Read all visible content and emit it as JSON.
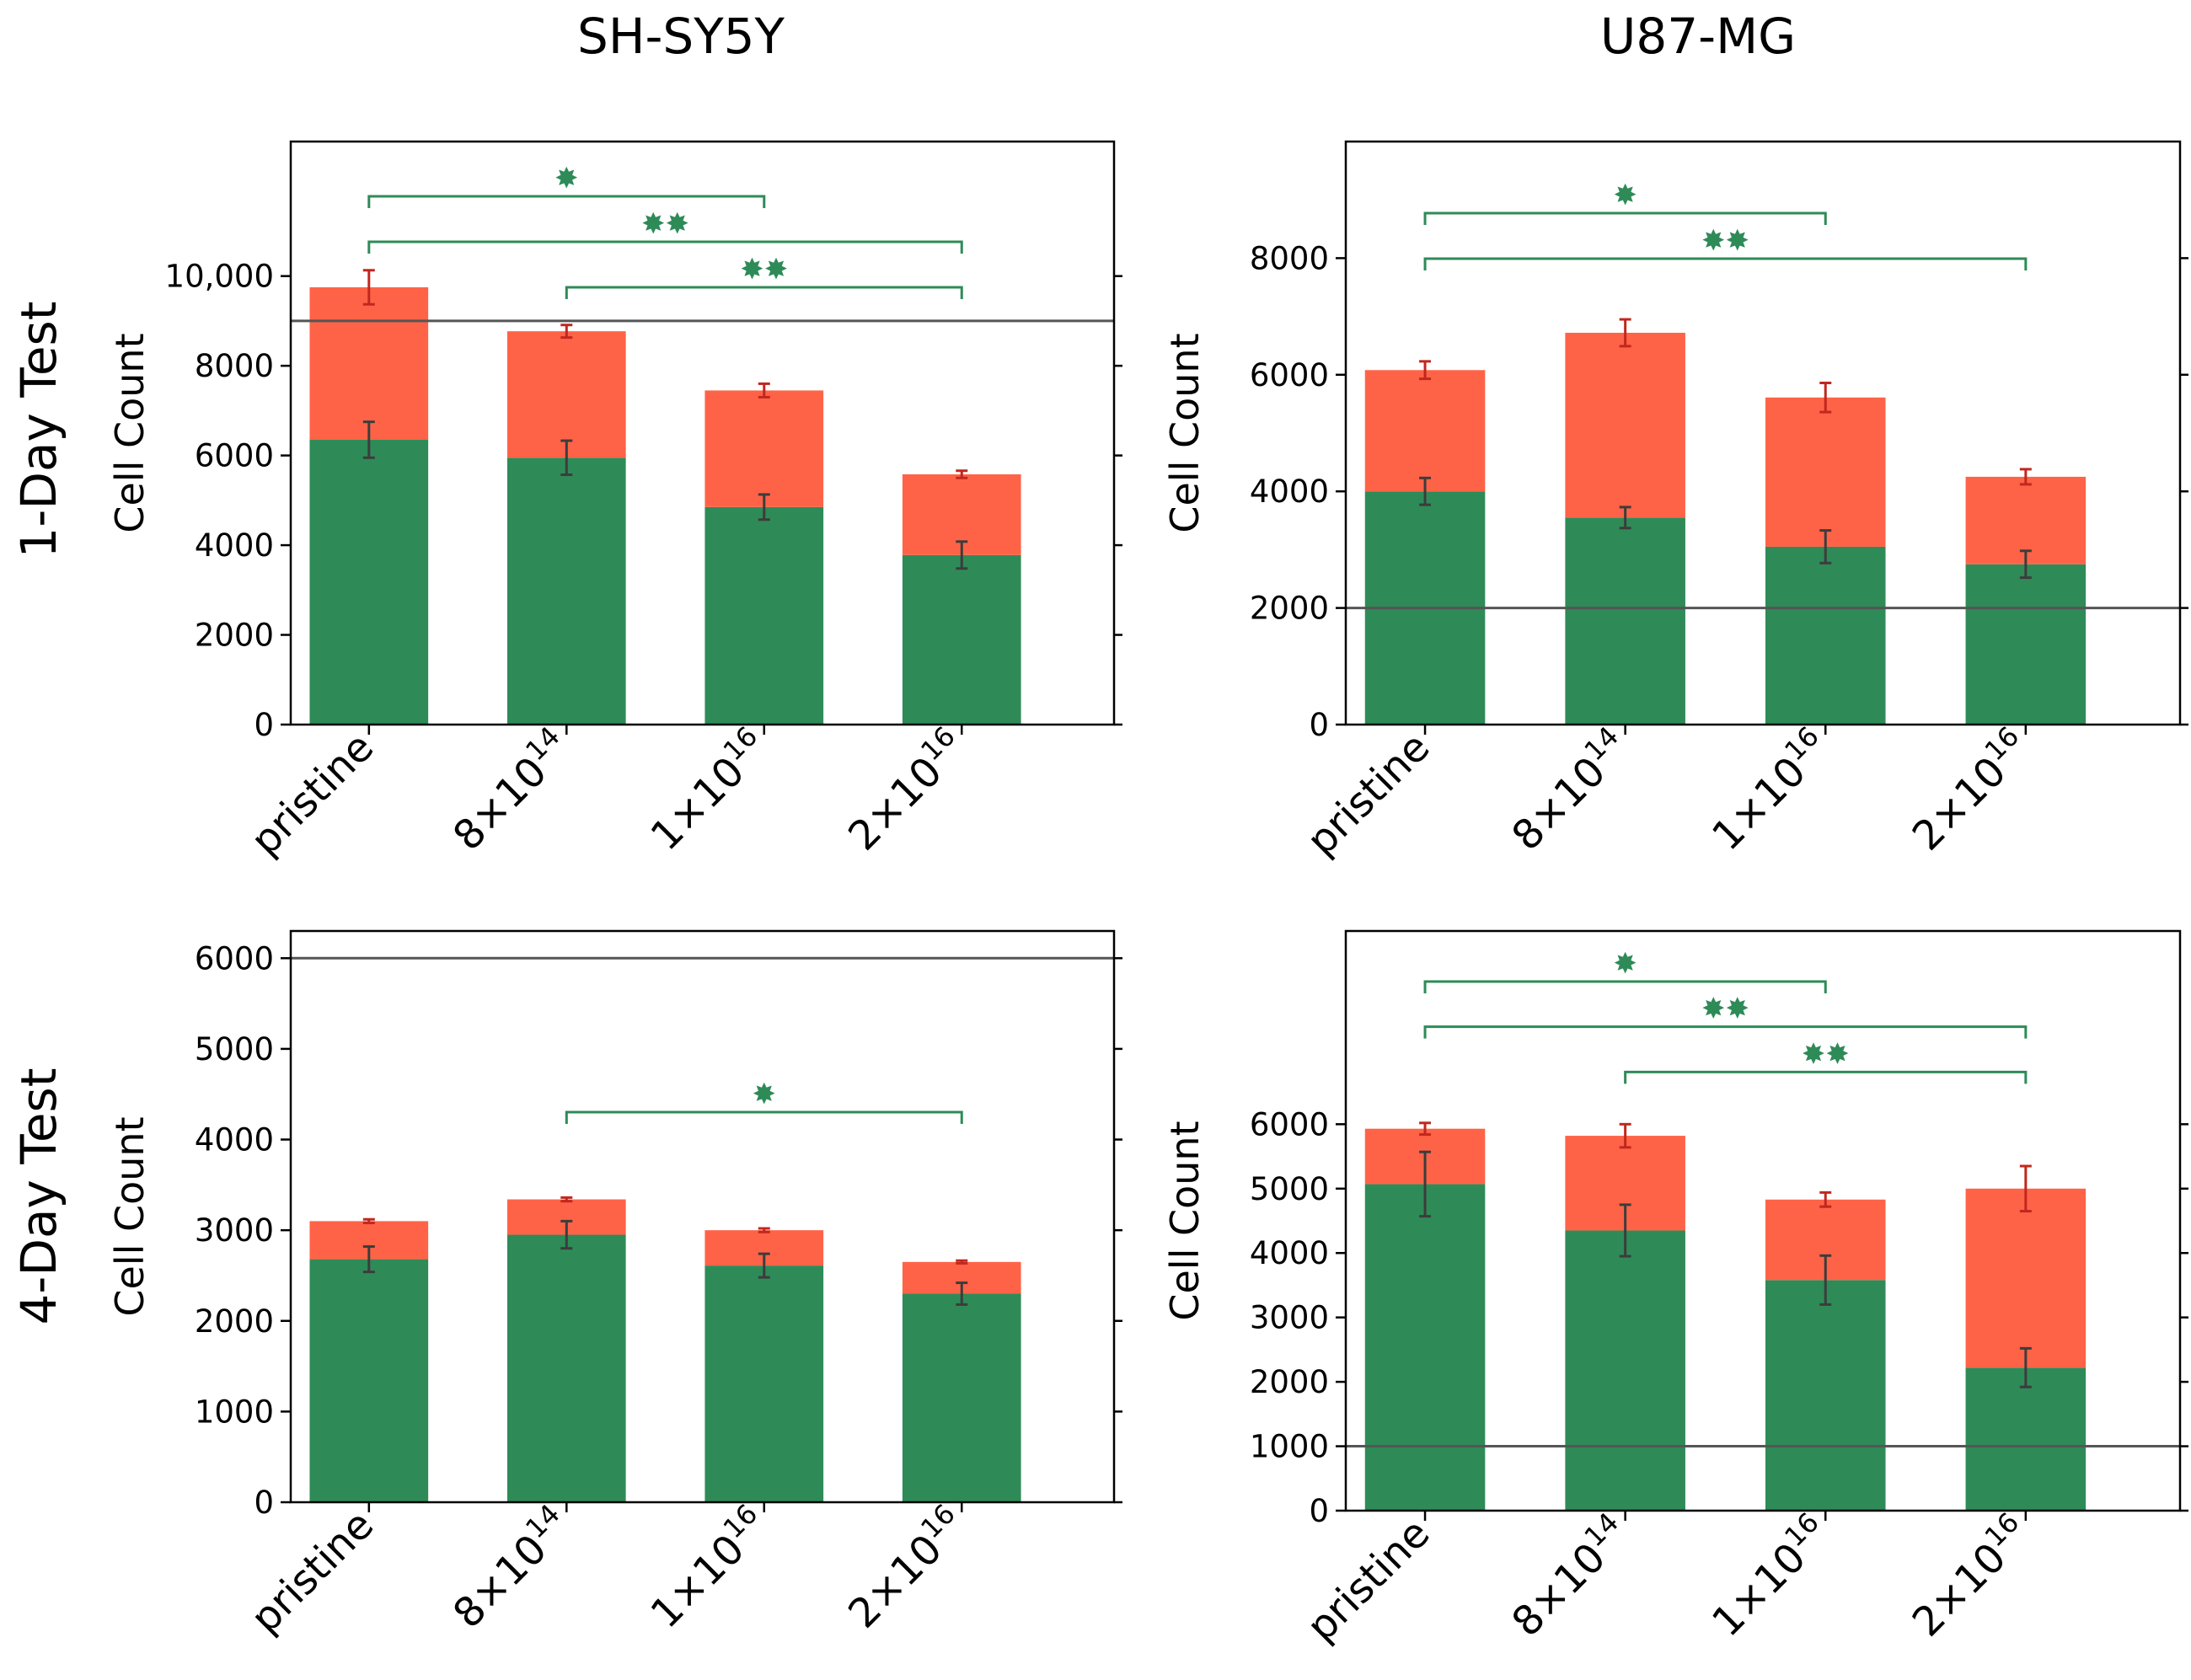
{
  "column_titles": [
    "SH-SY5Y",
    "U87-MG"
  ],
  "row_titles": [
    "1-Day Test",
    "4-Day Test"
  ],
  "colors": {
    "lower": "#2e8b57",
    "upper": "#ff6347",
    "lower_err": "#3c3c3c",
    "upper_err": "#c0281e",
    "significance": "#2e8b57",
    "reference_line": "#555555"
  },
  "x_tick_labels": [
    {
      "base": "pristine",
      "exp": ""
    },
    {
      "base": "8×10",
      "exp": "14"
    },
    {
      "base": "1×10",
      "exp": "16"
    },
    {
      "base": "2×10",
      "exp": "16"
    }
  ],
  "chart_data": [
    {
      "type": "bar",
      "stacked": true,
      "cell_line": "SH-SY5Y",
      "test": "1-Day Test",
      "categories": [
        "pristine",
        "8×10^14",
        "1×10^16",
        "2×10^16"
      ],
      "ylabel": "Cell Count",
      "ylim": [
        0,
        13000
      ],
      "yticks": [
        0,
        2000,
        4000,
        6000,
        8000,
        10000
      ],
      "ytick_labels": [
        "0",
        "2000",
        "4000",
        "6000",
        "8000",
        "10,000"
      ],
      "series": [
        {
          "values": [
            6350,
            5950,
            4850,
            3780
          ],
          "errors": [
            400,
            380,
            280,
            300
          ]
        },
        {
          "values": [
            3400,
            2820,
            2600,
            1800
          ],
          "errors": [
            380,
            140,
            150,
            80
          ]
        }
      ],
      "reference_line": 9000,
      "significance": [
        {
          "from": 0,
          "to": 2,
          "level": 1,
          "label": "✸"
        },
        {
          "from": 0,
          "to": 3,
          "level": 2,
          "label": "✸✸"
        },
        {
          "from": 1,
          "to": 3,
          "level": 3,
          "label": "✸✸"
        }
      ]
    },
    {
      "type": "bar",
      "stacked": true,
      "cell_line": "U87-MG",
      "test": "1-Day Test",
      "categories": [
        "pristine",
        "8×10^14",
        "1×10^16",
        "2×10^16"
      ],
      "ylabel": "Cell Count",
      "ylim": [
        0,
        10000
      ],
      "yticks": [
        0,
        2000,
        4000,
        6000,
        8000
      ],
      "ytick_labels": [
        "0",
        "2000",
        "4000",
        "6000",
        "8000"
      ],
      "series": [
        {
          "values": [
            4000,
            3550,
            3050,
            2750
          ],
          "errors": [
            230,
            180,
            280,
            230
          ]
        },
        {
          "values": [
            2080,
            3170,
            2560,
            1500
          ],
          "errors": [
            150,
            230,
            250,
            130
          ]
        }
      ],
      "reference_line": 2000,
      "significance": [
        {
          "from": 0,
          "to": 2,
          "level": 1,
          "label": "✸"
        },
        {
          "from": 0,
          "to": 3,
          "level": 2,
          "label": "✸✸"
        }
      ]
    },
    {
      "type": "bar",
      "stacked": true,
      "cell_line": "SH-SY5Y",
      "test": "4-Day Test",
      "categories": [
        "pristine",
        "8×10^14",
        "1×10^16",
        "2×10^16"
      ],
      "ylabel": "Cell Count",
      "ylim": [
        0,
        6300
      ],
      "yticks": [
        0,
        1000,
        2000,
        3000,
        4000,
        5000,
        6000
      ],
      "ytick_labels": [
        "0",
        "1000",
        "2000",
        "3000",
        "4000",
        "5000",
        "6000"
      ],
      "series": [
        {
          "values": [
            2680,
            2950,
            2610,
            2300
          ],
          "errors": [
            140,
            150,
            130,
            120
          ]
        },
        {
          "values": [
            420,
            390,
            390,
            350
          ],
          "errors": [
            20,
            20,
            20,
            15
          ]
        }
      ],
      "reference_line": 6000,
      "significance": [
        {
          "from": 1,
          "to": 3,
          "level": 1,
          "label": "✸"
        }
      ]
    },
    {
      "type": "bar",
      "stacked": true,
      "cell_line": "U87-MG",
      "test": "4-Day Test",
      "categories": [
        "pristine",
        "8×10^14",
        "1×10^16",
        "2×10^16"
      ],
      "ylabel": "Cell Count",
      "ylim": [
        0,
        9000
      ],
      "yticks": [
        0,
        1000,
        2000,
        3000,
        4000,
        5000,
        6000
      ],
      "ytick_labels": [
        "0",
        "1000",
        "2000",
        "3000",
        "4000",
        "5000",
        "6000"
      ],
      "series": [
        {
          "values": [
            5070,
            4350,
            3580,
            2220
          ],
          "errors": [
            500,
            400,
            380,
            300
          ]
        },
        {
          "values": [
            860,
            1470,
            1250,
            2780
          ],
          "errors": [
            90,
            180,
            110,
            350
          ]
        }
      ],
      "reference_line": 1000,
      "significance": [
        {
          "from": 0,
          "to": 2,
          "level": 1,
          "label": "✸"
        },
        {
          "from": 0,
          "to": 3,
          "level": 2,
          "label": "✸✸"
        },
        {
          "from": 1,
          "to": 3,
          "level": 3,
          "label": "✸✸"
        }
      ]
    }
  ]
}
